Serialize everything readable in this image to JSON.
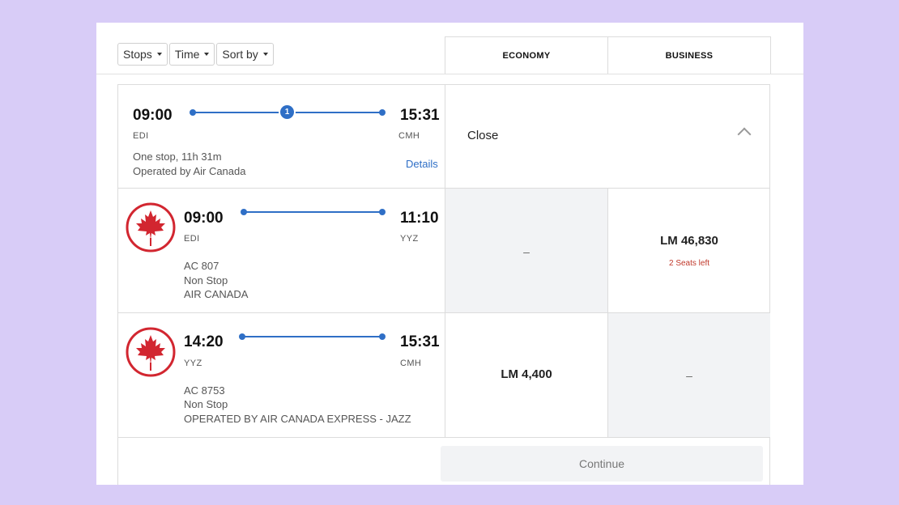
{
  "filters": {
    "stops": "Stops",
    "time": "Time",
    "sort": "Sort by"
  },
  "cabins": {
    "economy": "ECONOMY",
    "business": "BUSINESS"
  },
  "summary": {
    "depart_time": "09:00",
    "depart_code": "EDI",
    "arrive_time": "15:31",
    "arrive_code": "CMH",
    "stops_count": "1",
    "duration": "One stop, 11h 31m",
    "operated": "Operated by Air Canada",
    "details": "Details",
    "close": "Close"
  },
  "segments": [
    {
      "depart_time": "09:00",
      "depart_code": "EDI",
      "arrive_time": "11:10",
      "arrive_code": "YYZ",
      "flight": "AC 807",
      "stop_type": "Non Stop",
      "carrier": "AIR CANADA",
      "economy": {
        "price": "",
        "dash": "–"
      },
      "business": {
        "price": "LM 46,830",
        "seats": "2 Seats left",
        "dash": ""
      }
    },
    {
      "depart_time": "14:20",
      "depart_code": "YYZ",
      "arrive_time": "15:31",
      "arrive_code": "CMH",
      "flight": "AC 8753",
      "stop_type": "Non Stop",
      "carrier": "OPERATED BY AIR CANADA EXPRESS - JAZZ",
      "economy": {
        "price": "LM 4,400",
        "dash": ""
      },
      "business": {
        "price": "",
        "dash": "–"
      }
    }
  ],
  "continue": "Continue",
  "colors": {
    "background": "#d8ccf7",
    "accent": "#2f6fc6",
    "brand_red": "#d22630",
    "seats_red": "#c0392b"
  },
  "icons": {
    "logo": "air-canada-maple-leaf-logo",
    "collapse": "chevron-up-icon",
    "dropdown": "caret-down-icon"
  }
}
